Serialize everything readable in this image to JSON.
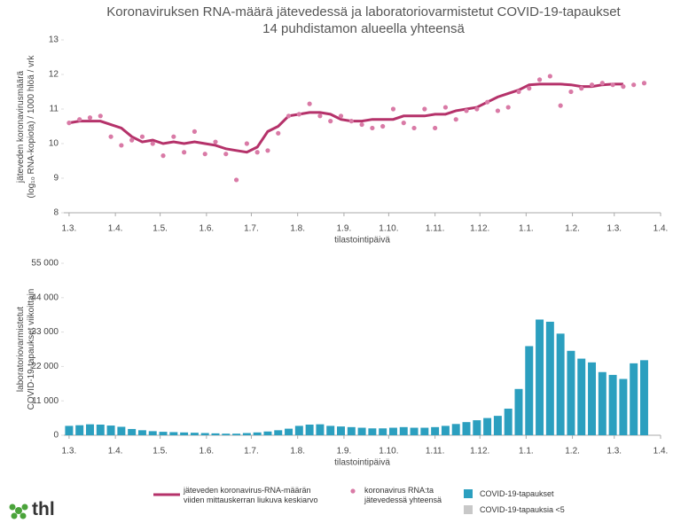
{
  "title": "Koronaviruksen RNA-määrä jätevedessä ja laboratoriovarmistetut COVID-19-tapaukset\n14 puhdistamon alueella yhteensä",
  "logo": "thl",
  "chart_data": [
    {
      "type": "line",
      "ylabel": "jäteveden koronavirusmäärä\n(log₁₀ RNA-kopiota) / 1000 hlöä / vrk",
      "xlabel": "tilastointipäivä",
      "x": [
        0,
        1,
        2,
        3,
        4,
        5,
        6,
        7,
        8,
        9,
        10,
        11,
        12,
        13,
        14,
        15,
        16,
        17,
        18,
        19,
        20,
        21,
        22,
        23,
        24,
        25,
        26,
        27,
        28,
        29,
        30,
        31,
        32,
        33,
        34,
        35,
        36,
        37,
        38,
        39,
        40,
        41,
        42,
        43,
        44,
        45,
        46,
        47,
        48,
        49,
        50,
        51,
        52,
        53,
        54,
        55
      ],
      "xlim": [
        -0.5,
        56.57
      ],
      "xticks": [
        {
          "value": 0,
          "label": "1.3."
        },
        {
          "value": 4.43,
          "label": "1.4."
        },
        {
          "value": 8.71,
          "label": "1.5."
        },
        {
          "value": 13.14,
          "label": "1.6."
        },
        {
          "value": 17.43,
          "label": "1.7."
        },
        {
          "value": 21.86,
          "label": "1.8."
        },
        {
          "value": 26.29,
          "label": "1.9."
        },
        {
          "value": 30.57,
          "label": "1.10."
        },
        {
          "value": 35,
          "label": "1.11."
        },
        {
          "value": 39.29,
          "label": "1.12."
        },
        {
          "value": 43.71,
          "label": "1.1."
        },
        {
          "value": 48.14,
          "label": "1.2."
        },
        {
          "value": 52.14,
          "label": "1.3."
        },
        {
          "value": 56.57,
          "label": "1.4."
        }
      ],
      "ylim": [
        8,
        13
      ],
      "yticks": [
        8,
        9,
        10,
        11,
        12,
        13
      ],
      "series": [
        {
          "name": "jäteveden koronavirus-RNA-määrän\nviiden mittauskerran liukuva keskiarvo",
          "type": "line",
          "color": "#b5326a",
          "values": [
            10.6,
            10.65,
            10.65,
            10.65,
            10.55,
            10.45,
            10.2,
            10.05,
            10.1,
            10.0,
            10.05,
            10.0,
            10.05,
            10.0,
            9.95,
            9.85,
            9.8,
            9.75,
            9.9,
            10.35,
            10.5,
            10.8,
            10.85,
            10.9,
            10.9,
            10.85,
            10.7,
            10.65,
            10.65,
            10.7,
            10.7,
            10.7,
            10.8,
            10.8,
            10.8,
            10.85,
            10.85,
            10.95,
            11.0,
            11.05,
            11.2,
            11.35,
            11.45,
            11.55,
            11.7,
            11.72,
            11.72,
            11.72,
            11.7,
            11.65,
            11.65,
            11.7,
            11.72,
            11.72,
            null,
            null
          ]
        },
        {
          "name": "koronavirus RNA:ta\njätevedessä yhteensä",
          "type": "scatter",
          "color": "#d97aa6",
          "values": [
            10.6,
            10.7,
            10.75,
            10.8,
            10.2,
            9.95,
            10.1,
            10.2,
            10.0,
            9.65,
            10.2,
            9.75,
            10.35,
            9.7,
            10.05,
            9.7,
            8.95,
            10.0,
            9.75,
            9.8,
            10.3,
            10.8,
            10.85,
            11.15,
            10.8,
            10.65,
            10.8,
            10.65,
            10.55,
            10.45,
            10.5,
            11.0,
            10.6,
            10.45,
            11.0,
            10.45,
            11.05,
            10.7,
            10.95,
            11.0,
            11.2,
            10.95,
            11.05,
            11.5,
            11.6,
            11.85,
            11.95,
            11.1,
            11.5,
            11.6,
            11.7,
            11.75,
            11.7,
            11.65,
            11.7,
            11.75
          ]
        }
      ]
    },
    {
      "type": "bar",
      "ylabel": "laboratoriovarmistetut\nCOVID-19-tapaukset viikoittain",
      "xlabel": "tilastointipäivä",
      "x": [
        0,
        1,
        2,
        3,
        4,
        5,
        6,
        7,
        8,
        9,
        10,
        11,
        12,
        13,
        14,
        15,
        16,
        17,
        18,
        19,
        20,
        21,
        22,
        23,
        24,
        25,
        26,
        27,
        28,
        29,
        30,
        31,
        32,
        33,
        34,
        35,
        36,
        37,
        38,
        39,
        40,
        41,
        42,
        43,
        44,
        45,
        46,
        47,
        48,
        49,
        50,
        51,
        52,
        53,
        54,
        55
      ],
      "xlim": [
        -0.5,
        56.57
      ],
      "xticks": [
        {
          "value": 0,
          "label": "1.3."
        },
        {
          "value": 4.43,
          "label": "1.4."
        },
        {
          "value": 8.71,
          "label": "1.5."
        },
        {
          "value": 13.14,
          "label": "1.6."
        },
        {
          "value": 17.43,
          "label": "1.7."
        },
        {
          "value": 21.86,
          "label": "1.8."
        },
        {
          "value": 26.29,
          "label": "1.9."
        },
        {
          "value": 30.57,
          "label": "1.10."
        },
        {
          "value": 35,
          "label": "1.11."
        },
        {
          "value": 39.29,
          "label": "1.12."
        },
        {
          "value": 43.71,
          "label": "1.1."
        },
        {
          "value": 48.14,
          "label": "1.2."
        },
        {
          "value": 52.14,
          "label": "1.3."
        },
        {
          "value": 56.57,
          "label": "1.4."
        }
      ],
      "ylim": [
        0,
        55000
      ],
      "yticks": [
        0,
        {
          "value": 11000,
          "label": "11 000"
        },
        {
          "value": 22000,
          "label": "22 000"
        },
        {
          "value": 33000,
          "label": "33 000"
        },
        {
          "value": 44000,
          "label": "44 000"
        },
        {
          "value": 55000,
          "label": "55 000"
        }
      ],
      "series": [
        {
          "name": "COVID-19-tapaukset",
          "type": "bar",
          "color": "#2b9fbf",
          "values": [
            3000,
            3200,
            3500,
            3400,
            3100,
            2700,
            2000,
            1600,
            1300,
            1100,
            1000,
            900,
            800,
            700,
            600,
            500,
            500,
            700,
            900,
            1200,
            1600,
            2100,
            3000,
            3400,
            3500,
            3000,
            2800,
            2600,
            2400,
            2200,
            2200,
            2400,
            2600,
            2400,
            2400,
            2600,
            3000,
            3600,
            4200,
            4800,
            5500,
            6200,
            8500,
            14800,
            28500,
            37000,
            36300,
            32500,
            27000,
            24500,
            23300,
            20200,
            19300,
            18000,
            23000,
            24000
          ]
        },
        {
          "name": "COVID-19-tapauksia <5",
          "type": "bar",
          "color": "#c8c8c8"
        }
      ]
    }
  ]
}
